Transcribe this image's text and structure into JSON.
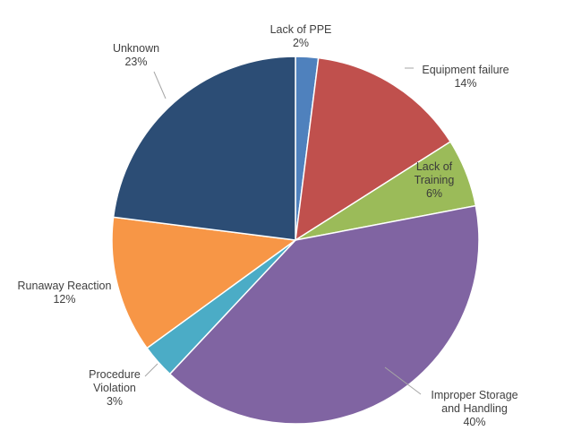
{
  "chart_data": {
    "type": "pie",
    "title": "",
    "start_angle_deg": 0,
    "direction": "clockwise",
    "slices": [
      {
        "label_lines": [
          "Lack of PPE"
        ],
        "pct_text": "2%",
        "value": 2,
        "color": "#4f81bd"
      },
      {
        "label_lines": [
          "Equipment failure"
        ],
        "pct_text": "14%",
        "value": 14,
        "color": "#c0504d"
      },
      {
        "label_lines": [
          "Lack of",
          "Training"
        ],
        "pct_text": "6%",
        "value": 6,
        "color": "#9bbb59"
      },
      {
        "label_lines": [
          "Improper Storage",
          "and Handling"
        ],
        "pct_text": "40%",
        "value": 40,
        "color": "#8064a2"
      },
      {
        "label_lines": [
          "Procedure",
          "Violation"
        ],
        "pct_text": "3%",
        "value": 3,
        "color": "#4bacc6"
      },
      {
        "label_lines": [
          "Runaway Reaction"
        ],
        "pct_text": "12%",
        "value": 12,
        "color": "#f79646"
      },
      {
        "label_lines": [
          "Unknown"
        ],
        "pct_text": "23%",
        "value": 23,
        "color": "#2c4d75"
      }
    ]
  }
}
